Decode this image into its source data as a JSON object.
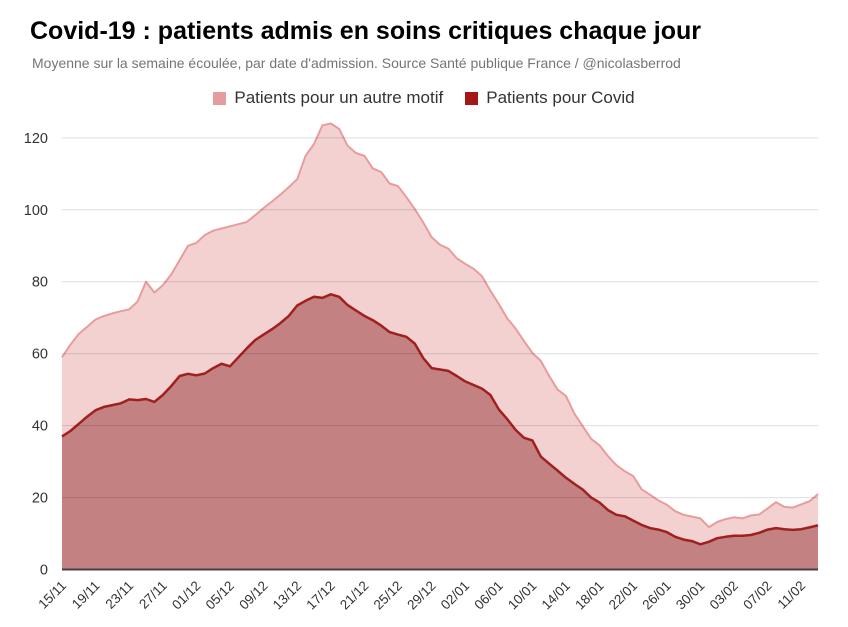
{
  "header": {
    "title": "Covid-19 : patients admis en soins critiques chaque jour",
    "subtitle": "Moyenne sur la semaine écoulée, par date d'admission. Source Santé publique France / @nicolasberrod"
  },
  "legend": [
    {
      "label": "Patients pour un autre motif",
      "color": "#e59c9c"
    },
    {
      "label": "Patients pour Covid",
      "color": "#a51717"
    }
  ],
  "chart_data": {
    "type": "area",
    "stacked": true,
    "title": "Covid-19 : patients admis en soins critiques chaque jour",
    "xlabel": "",
    "ylabel": "",
    "ylim": [
      0,
      124
    ],
    "y_ticks": [
      0,
      20,
      40,
      60,
      80,
      100,
      120
    ],
    "x_tick_every": 4,
    "grid": "horizontal",
    "legend_position": "top",
    "x": [
      "15/11",
      "16/11",
      "17/11",
      "18/11",
      "19/11",
      "20/11",
      "21/11",
      "22/11",
      "23/11",
      "24/11",
      "25/11",
      "26/11",
      "27/11",
      "28/11",
      "29/11",
      "30/11",
      "01/12",
      "02/12",
      "03/12",
      "04/12",
      "05/12",
      "06/12",
      "07/12",
      "08/12",
      "09/12",
      "10/12",
      "11/12",
      "12/12",
      "13/12",
      "14/12",
      "15/12",
      "16/12",
      "17/12",
      "18/12",
      "19/12",
      "20/12",
      "21/12",
      "22/12",
      "23/12",
      "24/12",
      "25/12",
      "26/12",
      "27/12",
      "28/12",
      "29/12",
      "30/12",
      "31/12",
      "01/01",
      "02/01",
      "03/01",
      "04/01",
      "05/01",
      "06/01",
      "07/01",
      "08/01",
      "09/01",
      "10/01",
      "11/01",
      "12/01",
      "13/01",
      "14/01",
      "15/01",
      "16/01",
      "17/01",
      "18/01",
      "19/01",
      "20/01",
      "21/01",
      "22/01",
      "23/01",
      "24/01",
      "25/01",
      "26/01",
      "27/01",
      "28/01",
      "29/01",
      "30/01",
      "31/01",
      "01/02",
      "02/02",
      "03/02",
      "04/02",
      "05/02",
      "06/02",
      "07/02",
      "08/02",
      "09/02",
      "10/02",
      "11/02",
      "12/02",
      "13/02"
    ],
    "series": [
      {
        "name": "Patients pour Covid",
        "line_color": "#a02020",
        "fill_color": "#c48181",
        "values": [
          37,
          38.5,
          40.5,
          42.5,
          44.3,
          45.2,
          45.7,
          46.2,
          47.3,
          47.1,
          47.4,
          46.6,
          48.5,
          51,
          53.8,
          54.4,
          54,
          54.5,
          56,
          57.2,
          56.5,
          59,
          61.5,
          63.8,
          65.3,
          66.8,
          68.5,
          70.5,
          73.4,
          74.7,
          75.8,
          75.5,
          76.5,
          75.8,
          73.5,
          72,
          70.5,
          69.3,
          67.8,
          66,
          65.3,
          64.7,
          62.8,
          58.8,
          56,
          55.6,
          55.2,
          53.8,
          52.3,
          51.3,
          50.3,
          48.5,
          44.5,
          41.8,
          38.8,
          36.6,
          35.9,
          31.4,
          29.4,
          27.5,
          25.5,
          23.8,
          22.2,
          20,
          18.6,
          16.5,
          15.2,
          14.8,
          13.6,
          12.4,
          11.5,
          11.1,
          10.4,
          9.1,
          8.3,
          7.9,
          7,
          7.7,
          8.7,
          9.1,
          9.4,
          9.4,
          9.6,
          10.2,
          11.1,
          11.5,
          11.2,
          11,
          11.2,
          11.7,
          12.3
        ]
      },
      {
        "name": "Patients pour un autre motif",
        "line_color": "#e89c9c",
        "fill_color": "#f3d1d1",
        "values": [
          22,
          24,
          25,
          25,
          25.2,
          25.3,
          25.5,
          25.6,
          25,
          27.4,
          32.6,
          30.4,
          30.5,
          31,
          32.2,
          35.6,
          36.8,
          38.5,
          38.2,
          37.6,
          38.9,
          37,
          35.1,
          34.7,
          35.2,
          35.5,
          35.7,
          35.8,
          35.1,
          40.3,
          42.5,
          48,
          47.5,
          46.7,
          44.3,
          43.8,
          44.5,
          42.2,
          42.7,
          41.3,
          41.3,
          38.8,
          37.4,
          37.7,
          36.4,
          34.7,
          34,
          32.7,
          32.7,
          32.3,
          31.2,
          29,
          29.3,
          28,
          28.2,
          26.9,
          24.3,
          26.6,
          24.4,
          22.5,
          22.7,
          19.5,
          17.6,
          16.3,
          15.9,
          15,
          13.8,
          12.5,
          12.4,
          9.9,
          9.3,
          8.1,
          7.6,
          7.1,
          6.9,
          6.8,
          7.2,
          4.1,
          4.5,
          4.9,
          5.1,
          4.8,
          5.4,
          5.1,
          5.9,
          7.2,
          6.2,
          6.2,
          6.9,
          7.3,
          8.7
        ]
      }
    ]
  }
}
